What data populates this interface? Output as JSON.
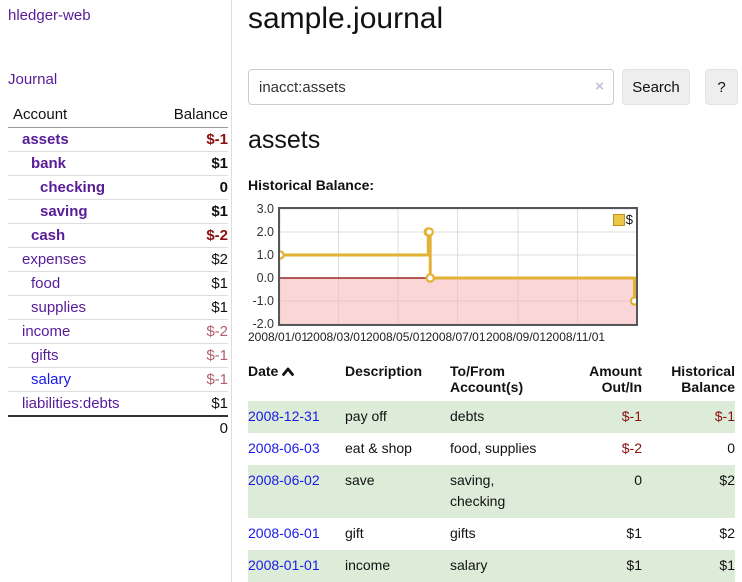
{
  "app": {
    "title": "hledger-web",
    "nav_journal": "Journal"
  },
  "colors": {
    "link_purple": "#571c97",
    "link_blue": "#1a1ae6",
    "negative_strong": "#8c1010",
    "negative_muted": "#b2606a",
    "row_green": "#ddecd9",
    "button_bg": "#eeeeee",
    "border_light": "#dddddd",
    "border_header": "#999999",
    "border_total": "#333333",
    "chart_border": "#55565a",
    "gridline": "#dddddd",
    "chart_line": "#e2b236",
    "chart_negative_fill": "#f5b4b4",
    "zero_line": "#8b0000",
    "legend_swatch": "#ecc747",
    "clear_icon_color": "#c6bcd6"
  },
  "sidebar": {
    "accounts_header": {
      "account": "Account",
      "balance": "Balance"
    },
    "accounts": [
      {
        "name": "assets",
        "level": 0,
        "bold": true,
        "link_color": "purple",
        "balance": "$-1",
        "balance_class": "neg-strong"
      },
      {
        "name": "bank",
        "level": 1,
        "bold": true,
        "link_color": "purple",
        "balance": "$1",
        "balance_class": ""
      },
      {
        "name": "checking",
        "level": 2,
        "bold": true,
        "link_color": "purple",
        "balance": "0",
        "balance_class": ""
      },
      {
        "name": "saving",
        "level": 2,
        "bold": true,
        "link_color": "purple",
        "balance": "$1",
        "balance_class": ""
      },
      {
        "name": "cash",
        "level": 1,
        "bold": true,
        "link_color": "purple",
        "balance": "$-2",
        "balance_class": "neg-strong"
      },
      {
        "name": "expenses",
        "level": 0,
        "bold": false,
        "link_color": "purple",
        "balance": "$2",
        "balance_class": ""
      },
      {
        "name": "food",
        "level": 1,
        "bold": false,
        "link_color": "purple",
        "balance": "$1",
        "balance_class": ""
      },
      {
        "name": "supplies",
        "level": 1,
        "bold": false,
        "link_color": "purple",
        "balance": "$1",
        "balance_class": ""
      },
      {
        "name": "income",
        "level": 0,
        "bold": false,
        "link_color": "purple",
        "balance": "$-2",
        "balance_class": "neg-muted"
      },
      {
        "name": "gifts",
        "level": 1,
        "bold": false,
        "link_color": "purple",
        "balance": "$-1",
        "balance_class": "neg-muted"
      },
      {
        "name": "salary",
        "level": 1,
        "bold": false,
        "link_color": "blue",
        "balance": "$-1",
        "balance_class": "neg-muted"
      },
      {
        "name": "liabilities:debts",
        "level": 0,
        "bold": false,
        "link_color": "purple",
        "balance": "$1",
        "balance_class": ""
      }
    ],
    "total": "0"
  },
  "main": {
    "title": "sample.journal",
    "search": {
      "value": "inacct:assets",
      "clear_icon": "×",
      "button_label": "Search",
      "help_label": "?"
    },
    "account_title": "assets",
    "chart_label": "Historical Balance:"
  },
  "chart_data": {
    "type": "line",
    "title": "Historical Balance",
    "step": true,
    "xlabel": "",
    "ylabel": "",
    "ylim": [
      -2,
      3
    ],
    "x_range": [
      "2008-01-01",
      "2008-12-31"
    ],
    "grid": true,
    "legend_position": "top-right",
    "series": [
      {
        "name": "$",
        "points": [
          {
            "date": "2008-01-01",
            "value": 1
          },
          {
            "date": "2008-06-01",
            "value": 2
          },
          {
            "date": "2008-06-02",
            "value": 2
          },
          {
            "date": "2008-06-03",
            "value": 0
          },
          {
            "date": "2008-12-31",
            "value": -1
          }
        ]
      }
    ],
    "x_ticks": [
      {
        "label": "2008/01/01",
        "date": "2008-01-01"
      },
      {
        "label": "2008/03/01",
        "date": "2008-03-01"
      },
      {
        "label": "2008/05/01",
        "date": "2008-05-01"
      },
      {
        "label": "2008/07/01",
        "date": "2008-07-01"
      },
      {
        "label": "2008/09/01",
        "date": "2008-09-01"
      },
      {
        "label": "2008/11/01",
        "date": "2008-11-01"
      }
    ],
    "y_ticks": [
      {
        "label": "3.0",
        "value": 3
      },
      {
        "label": "2.0",
        "value": 2
      },
      {
        "label": "1.0",
        "value": 1
      },
      {
        "label": "0.0",
        "value": 0
      },
      {
        "label": "-1.0",
        "value": -1
      },
      {
        "label": "-2.0",
        "value": -2
      }
    ]
  },
  "register": {
    "headers": {
      "date": "Date",
      "description": "Description",
      "accounts": "To/From Account(s)",
      "amount": "Amount Out/In",
      "balance": "Historical Balance"
    },
    "rows": [
      {
        "date": "2008-12-31",
        "description": "pay off",
        "accounts": "debts",
        "amount": "$-1",
        "amount_class": "neg",
        "balance": "$-1",
        "balance_class": "neg",
        "shaded": true
      },
      {
        "date": "2008-06-03",
        "description": "eat & shop",
        "accounts": "food, supplies",
        "amount": "$-2",
        "amount_class": "neg",
        "balance": "0",
        "balance_class": "",
        "shaded": false
      },
      {
        "date": "2008-06-02",
        "description": "save",
        "accounts": "saving, checking",
        "amount": "0",
        "amount_class": "",
        "balance": "$2",
        "balance_class": "",
        "shaded": true
      },
      {
        "date": "2008-06-01",
        "description": "gift",
        "accounts": "gifts",
        "amount": "$1",
        "amount_class": "",
        "balance": "$2",
        "balance_class": "",
        "shaded": false
      },
      {
        "date": "2008-01-01",
        "description": "income",
        "accounts": "salary",
        "amount": "$1",
        "amount_class": "",
        "balance": "$1",
        "balance_class": "",
        "shaded": true
      }
    ]
  }
}
